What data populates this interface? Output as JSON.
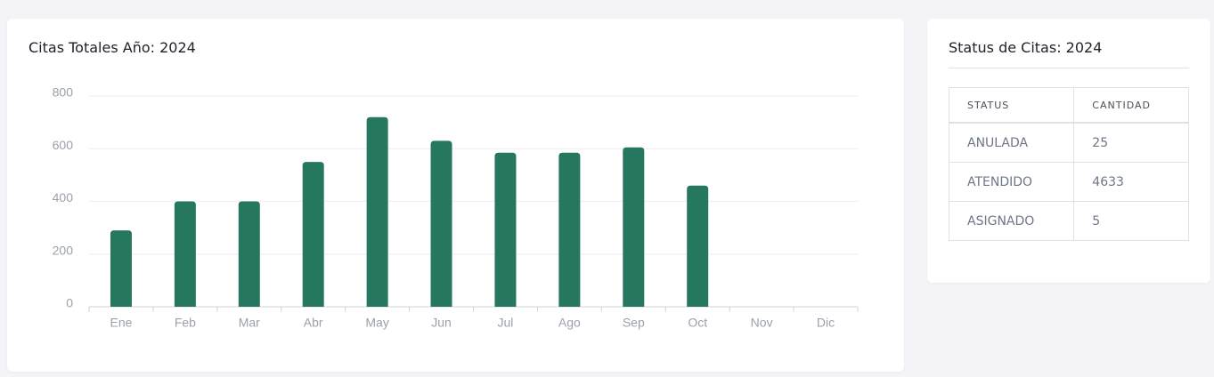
{
  "chart_data": {
    "type": "bar",
    "title": "Citas Totales Año: 2024",
    "categories": [
      "Ene",
      "Feb",
      "Mar",
      "Abr",
      "May",
      "Jun",
      "Jul",
      "Ago",
      "Sep",
      "Oct",
      "Nov",
      "Dic"
    ],
    "values": [
      290,
      400,
      400,
      550,
      720,
      630,
      585,
      585,
      605,
      460,
      null,
      null
    ],
    "color": "#267760",
    "ylim": [
      0,
      800
    ],
    "yticks": [
      0,
      200,
      400,
      600,
      800
    ],
    "grid": true
  },
  "status": {
    "title": "Status de Citas: 2024",
    "table": {
      "header": [
        "STATUS",
        "CANTIDAD"
      ],
      "rows": [
        [
          "ANULADA",
          "25"
        ],
        [
          "ATENDIDO",
          "4633"
        ],
        [
          "ASIGNADO",
          "5"
        ]
      ]
    }
  }
}
